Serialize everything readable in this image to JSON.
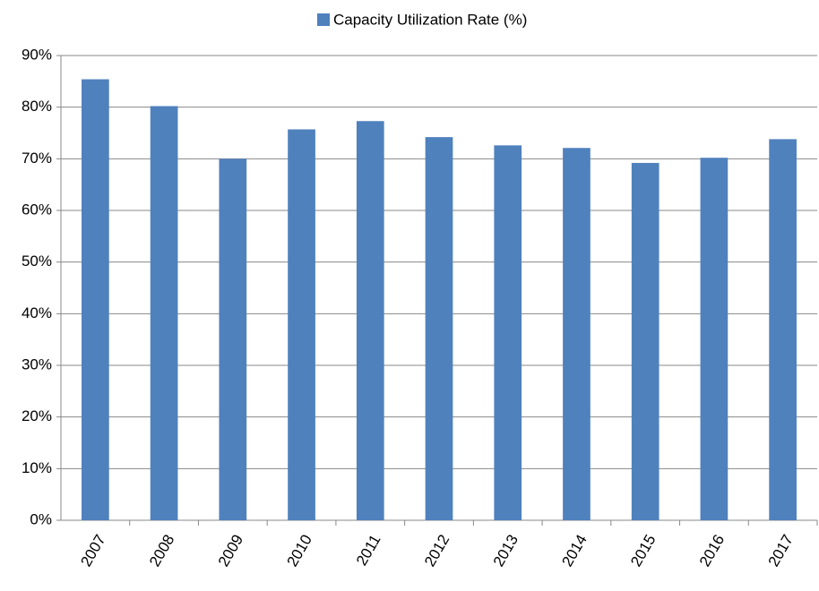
{
  "chart_data": {
    "type": "bar",
    "categories": [
      "2007",
      "2008",
      "2009",
      "2010",
      "2011",
      "2012",
      "2013",
      "2014",
      "2015",
      "2016",
      "2017"
    ],
    "series": [
      {
        "name": "Capacity Utilization Rate (%)",
        "color": "#4f81bd",
        "values": [
          85.4,
          80.2,
          70.0,
          75.7,
          77.3,
          74.2,
          72.6,
          72.1,
          69.2,
          70.2,
          73.8
        ]
      }
    ],
    "ylim": [
      0,
      90
    ],
    "yticks": [
      {
        "value": 0,
        "label": "0%"
      },
      {
        "value": 10,
        "label": "10%"
      },
      {
        "value": 20,
        "label": "20%"
      },
      {
        "value": 30,
        "label": "30%"
      },
      {
        "value": 40,
        "label": "40%"
      },
      {
        "value": 50,
        "label": "50%"
      },
      {
        "value": 60,
        "label": "60%"
      },
      {
        "value": 70,
        "label": "70%"
      },
      {
        "value": 80,
        "label": "80%"
      },
      {
        "value": 90,
        "label": "90%"
      }
    ],
    "grid": true,
    "legend": "top"
  }
}
